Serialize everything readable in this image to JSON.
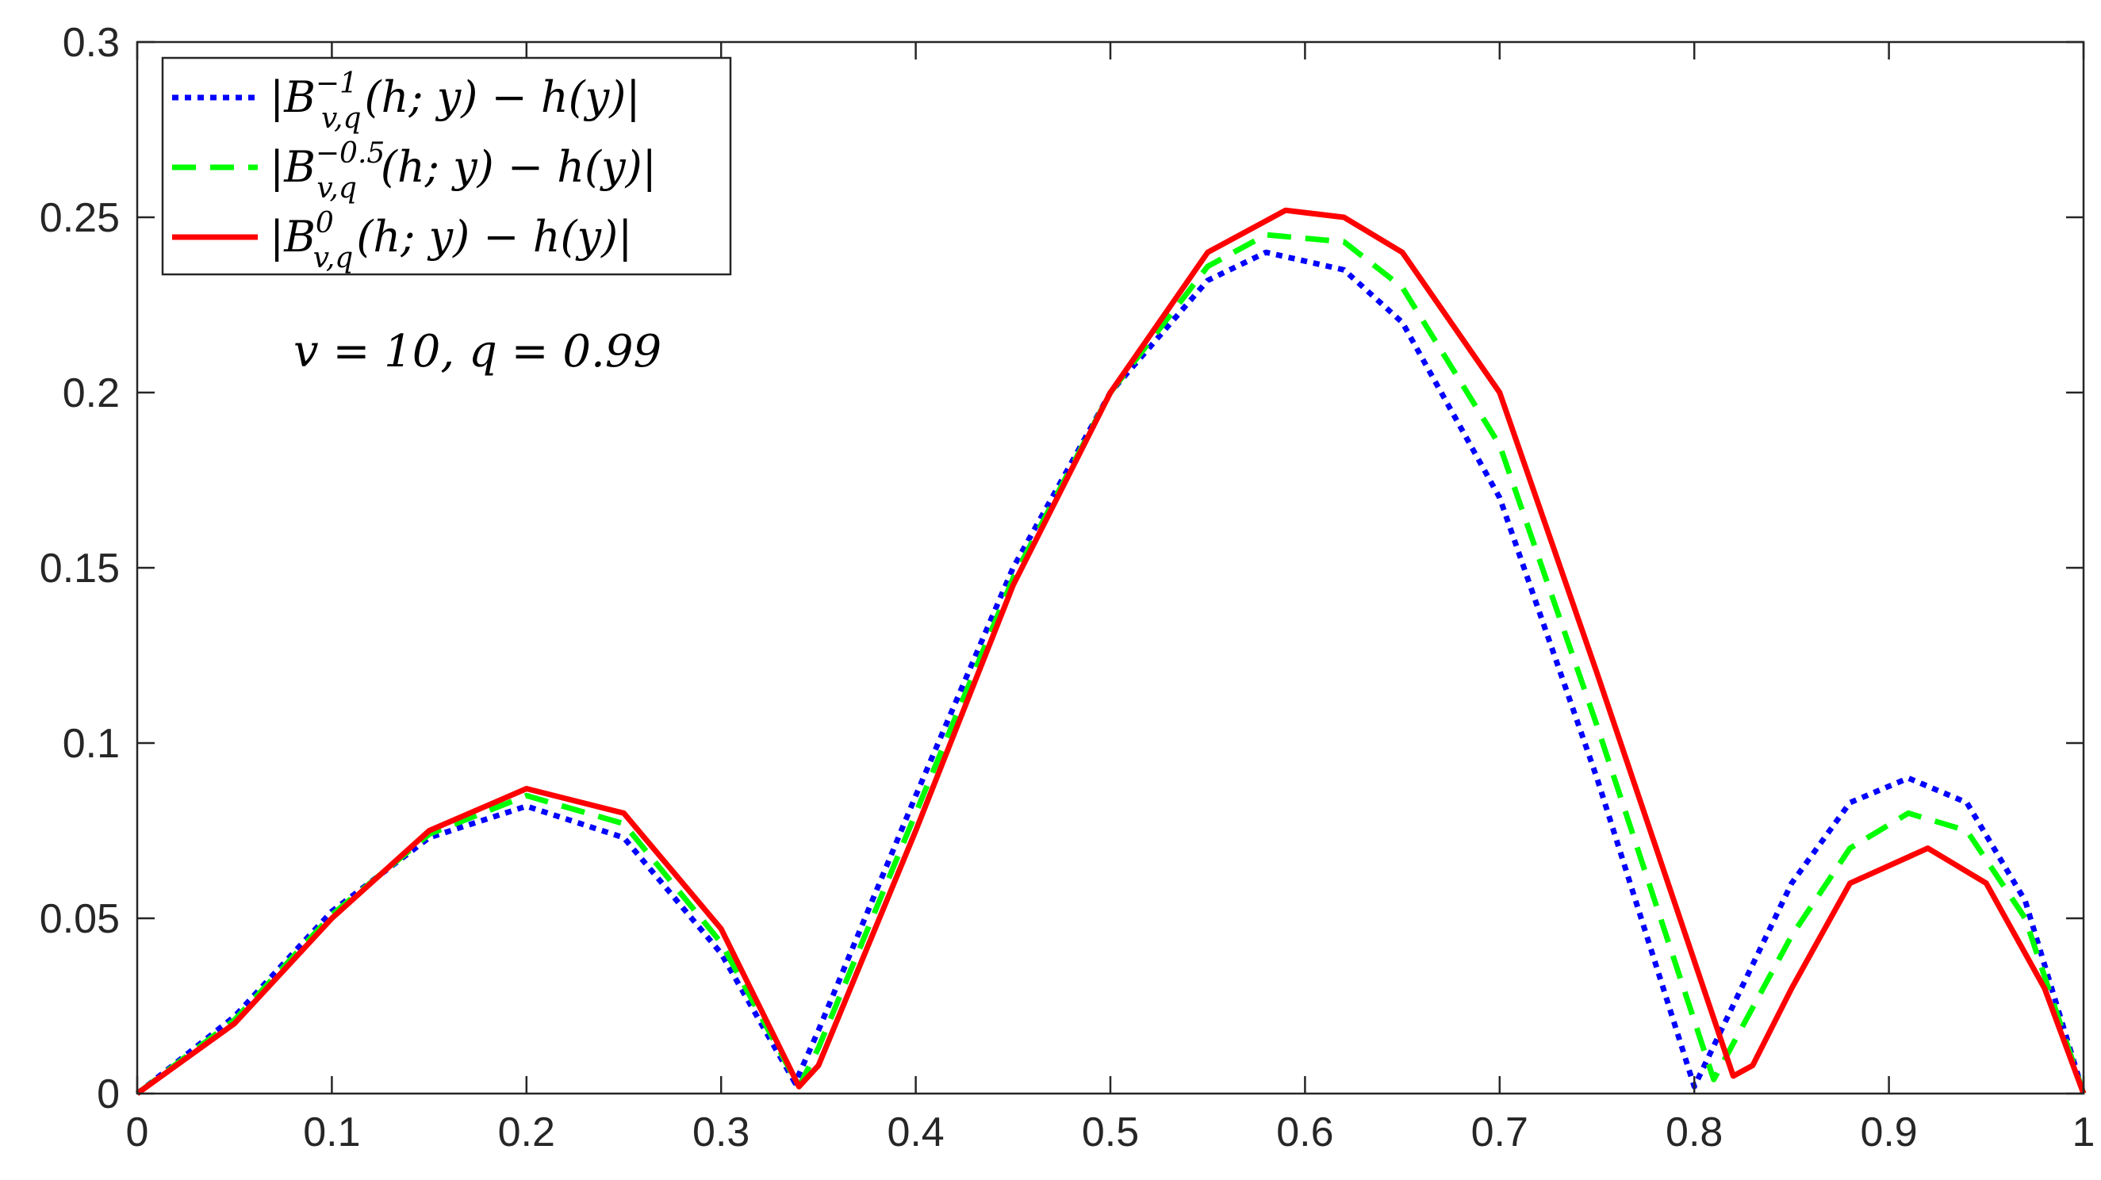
{
  "chart_data": {
    "type": "line",
    "title": "",
    "xlabel": "",
    "ylabel": "",
    "xlim": [
      0,
      1
    ],
    "ylim": [
      0,
      0.3
    ],
    "grid": false,
    "legend_position": "top-left",
    "x_ticks": [
      "0",
      "0.1",
      "0.2",
      "0.3",
      "0.4",
      "0.5",
      "0.6",
      "0.7",
      "0.8",
      "0.9",
      "1"
    ],
    "y_ticks": [
      "0",
      "0.05",
      "0.1",
      "0.15",
      "0.2",
      "0.25",
      "0.3"
    ],
    "annotation": "v = 10, q = 0.99",
    "series": [
      {
        "name": "|B_{v,q}^{-1}(h;y) - h(y)|",
        "legend": {
          "pre": "|B",
          "sup": "−1",
          "sub": "v,q",
          "post": "(h; y) − h(y)|"
        },
        "color": "#0000ff",
        "style": "dotted",
        "points": [
          [
            0,
            0
          ],
          [
            0.05,
            0.022
          ],
          [
            0.1,
            0.052
          ],
          [
            0.15,
            0.073
          ],
          [
            0.2,
            0.082
          ],
          [
            0.25,
            0.073
          ],
          [
            0.3,
            0.04
          ],
          [
            0.338,
            0.003
          ],
          [
            0.35,
            0.018
          ],
          [
            0.4,
            0.085
          ],
          [
            0.45,
            0.15
          ],
          [
            0.5,
            0.2
          ],
          [
            0.55,
            0.232
          ],
          [
            0.58,
            0.24
          ],
          [
            0.62,
            0.235
          ],
          [
            0.65,
            0.22
          ],
          [
            0.7,
            0.17
          ],
          [
            0.75,
            0.09
          ],
          [
            0.8,
            0.002
          ],
          [
            0.85,
            0.06
          ],
          [
            0.88,
            0.083
          ],
          [
            0.91,
            0.09
          ],
          [
            0.94,
            0.083
          ],
          [
            0.97,
            0.055
          ],
          [
            1,
            0
          ]
        ]
      },
      {
        "name": "|B_{v,q}^{-0.5}(h;y) - h(y)|",
        "legend": {
          "pre": "|B",
          "sup": "−0.5",
          "sub": "v,q",
          "post": "(h; y) − h(y)|"
        },
        "color": "#00ff00",
        "style": "dashed",
        "points": [
          [
            0,
            0
          ],
          [
            0.05,
            0.021
          ],
          [
            0.1,
            0.051
          ],
          [
            0.15,
            0.074
          ],
          [
            0.2,
            0.085
          ],
          [
            0.25,
            0.077
          ],
          [
            0.3,
            0.043
          ],
          [
            0.34,
            0.002
          ],
          [
            0.35,
            0.013
          ],
          [
            0.4,
            0.08
          ],
          [
            0.45,
            0.147
          ],
          [
            0.5,
            0.2
          ],
          [
            0.55,
            0.236
          ],
          [
            0.58,
            0.245
          ],
          [
            0.62,
            0.243
          ],
          [
            0.65,
            0.23
          ],
          [
            0.7,
            0.185
          ],
          [
            0.75,
            0.105
          ],
          [
            0.81,
            0.004
          ],
          [
            0.85,
            0.045
          ],
          [
            0.88,
            0.07
          ],
          [
            0.91,
            0.08
          ],
          [
            0.94,
            0.075
          ],
          [
            0.97,
            0.05
          ],
          [
            1,
            0
          ]
        ]
      },
      {
        "name": "|B_{v,q}^{0}(h;y) - h(y)|",
        "legend": {
          "pre": "|B",
          "sup": "0",
          "sub": "v,q",
          "post": "(h; y) − h(y)|"
        },
        "color": "#ff0000",
        "style": "solid",
        "points": [
          [
            0,
            0
          ],
          [
            0.05,
            0.02
          ],
          [
            0.1,
            0.05
          ],
          [
            0.15,
            0.075
          ],
          [
            0.2,
            0.087
          ],
          [
            0.25,
            0.08
          ],
          [
            0.3,
            0.047
          ],
          [
            0.34,
            0.002
          ],
          [
            0.35,
            0.008
          ],
          [
            0.4,
            0.075
          ],
          [
            0.45,
            0.145
          ],
          [
            0.5,
            0.2
          ],
          [
            0.55,
            0.24
          ],
          [
            0.59,
            0.252
          ],
          [
            0.62,
            0.25
          ],
          [
            0.65,
            0.24
          ],
          [
            0.7,
            0.2
          ],
          [
            0.75,
            0.12
          ],
          [
            0.82,
            0.005
          ],
          [
            0.83,
            0.008
          ],
          [
            0.85,
            0.03
          ],
          [
            0.88,
            0.06
          ],
          [
            0.92,
            0.07
          ],
          [
            0.95,
            0.06
          ],
          [
            0.98,
            0.03
          ],
          [
            1,
            0
          ]
        ]
      }
    ]
  }
}
